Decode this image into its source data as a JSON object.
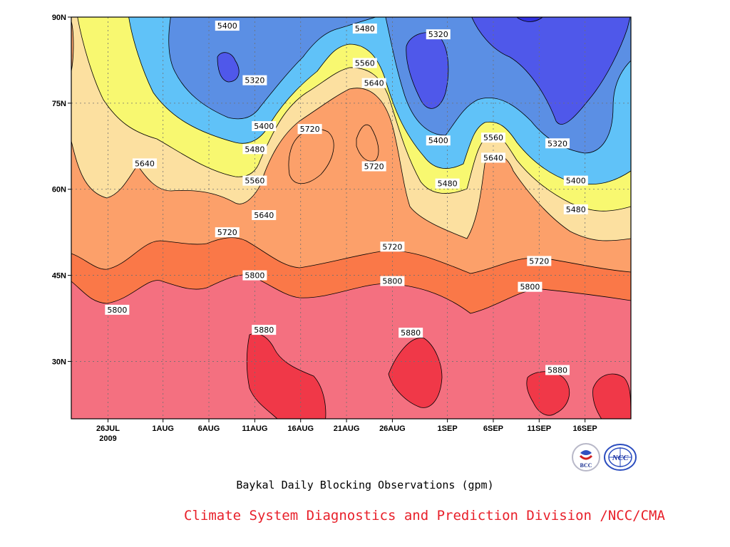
{
  "chart_data": {
    "type": "heatmap",
    "title": "Baykal Daily Blocking Observations (gpm)",
    "x_tick_labels": [
      "26JUL",
      "1AUG",
      "6AUG",
      "11AUG",
      "16AUG",
      "21AUG",
      "26AUG",
      "1SEP",
      "6SEP",
      "11SEP",
      "16SEP"
    ],
    "x_year_label": "2009",
    "y_tick_labels": [
      "90N",
      "75N",
      "60N",
      "45N",
      "30N"
    ],
    "xlim": [
      "2009-07-22",
      "2009-09-21"
    ],
    "ylim": [
      20,
      90
    ],
    "grid": true,
    "contour_levels": [
      5320,
      5400,
      5480,
      5560,
      5640,
      5720,
      5800,
      5880
    ],
    "colors": {
      "below_5320": "#3030e0",
      "5320_5400": "#4f58ea",
      "5400_5480": "#5b8fe4",
      "5480_5560": "#60c2f8",
      "5560_5640": "#f8f870",
      "5640_5720": "#fce0a0",
      "5720_5800": "#fca06a",
      "5800_5880": "#fa7848",
      "5880_5960": "#f47080",
      "above_5880": "#f03848"
    },
    "contour_labels": [
      {
        "text": "5400",
        "date": "2009-08-08",
        "lat": 88.5
      },
      {
        "text": "5480",
        "date": "2009-08-23",
        "lat": 88
      },
      {
        "text": "5320",
        "date": "2009-08-31",
        "lat": 87
      },
      {
        "text": "5320",
        "date": "2009-08-11",
        "lat": 79
      },
      {
        "text": "5560",
        "date": "2009-08-23",
        "lat": 82
      },
      {
        "text": "5640",
        "date": "2009-08-24",
        "lat": 78.5
      },
      {
        "text": "5400",
        "date": "2009-08-12",
        "lat": 71
      },
      {
        "text": "5720",
        "date": "2009-08-17",
        "lat": 70.5
      },
      {
        "text": "5400",
        "date": "2009-08-31",
        "lat": 68.5
      },
      {
        "text": "5560",
        "date": "2009-09-06",
        "lat": 69
      },
      {
        "text": "5320",
        "date": "2009-09-13",
        "lat": 68
      },
      {
        "text": "5480",
        "date": "2009-08-11",
        "lat": 67
      },
      {
        "text": "5720",
        "date": "2009-08-24",
        "lat": 64
      },
      {
        "text": "5640",
        "date": "2009-09-06",
        "lat": 65.5
      },
      {
        "text": "5640",
        "date": "2009-07-30",
        "lat": 64.5
      },
      {
        "text": "5560",
        "date": "2009-08-11",
        "lat": 61.5
      },
      {
        "text": "5400",
        "date": "2009-09-15",
        "lat": 61.5
      },
      {
        "text": "5480",
        "date": "2009-09-01",
        "lat": 61
      },
      {
        "text": "5480",
        "date": "2009-09-15",
        "lat": 56.5
      },
      {
        "text": "5640",
        "date": "2009-08-12",
        "lat": 55.5
      },
      {
        "text": "5720",
        "date": "2009-08-08",
        "lat": 52.5
      },
      {
        "text": "5720",
        "date": "2009-08-26",
        "lat": 50
      },
      {
        "text": "5720",
        "date": "2009-09-11",
        "lat": 47.5
      },
      {
        "text": "5800",
        "date": "2009-08-11",
        "lat": 45
      },
      {
        "text": "5800",
        "date": "2009-08-26",
        "lat": 44
      },
      {
        "text": "5800",
        "date": "2009-09-10",
        "lat": 43
      },
      {
        "text": "5800",
        "date": "2009-07-27",
        "lat": 39
      },
      {
        "text": "5880",
        "date": "2009-08-12",
        "lat": 35.5
      },
      {
        "text": "5880",
        "date": "2009-08-28",
        "lat": 35
      },
      {
        "text": "5880",
        "date": "2009-09-13",
        "lat": 28.5
      }
    ]
  },
  "caption": "Baykal Daily Blocking Observations (gpm)",
  "credit": "Climate System Diagnostics and Prediction Division /NCC/CMA",
  "logos": {
    "left": "BCC",
    "right": "NCC"
  }
}
